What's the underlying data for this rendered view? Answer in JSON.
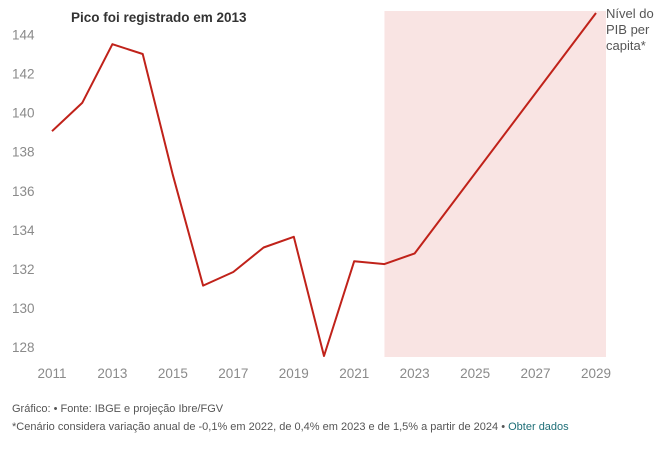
{
  "chart_data": {
    "type": "line",
    "title": "Pico foi registrado em 2013",
    "series": [
      {
        "name": "Nível do PIB per capita*",
        "x": [
          2011,
          2012,
          2013,
          2014,
          2015,
          2016,
          2017,
          2018,
          2019,
          2020,
          2021,
          2022,
          2023,
          2029
        ],
        "values": [
          139.05,
          140.5,
          143.5,
          143.0,
          136.8,
          131.15,
          131.85,
          133.1,
          133.65,
          127.55,
          132.4,
          132.25,
          132.8,
          145.1
        ]
      }
    ],
    "xlim": [
      2011,
      2029
    ],
    "ylim": [
      127.5,
      145.2
    ],
    "x_ticks": [
      2011,
      2013,
      2015,
      2017,
      2019,
      2021,
      2023,
      2025,
      2027,
      2029
    ],
    "y_ticks": [
      128,
      130,
      132,
      134,
      136,
      138,
      140,
      142,
      144
    ],
    "projection_range": [
      2022,
      2029
    ],
    "grid": false,
    "colors": {
      "line": "#c0221a",
      "projection_shading": "#f9e4e3",
      "link": "#1f6f78"
    }
  },
  "footer": {
    "source": "Gráfico: • Fonte: IBGE e projeção Ibre/FGV",
    "note": "*Cenário considera variação anual de -0,1% em 2022, de 0,4% em 2023 e de 1,5% a partir de 2024 • ",
    "link": "Obter dados"
  }
}
